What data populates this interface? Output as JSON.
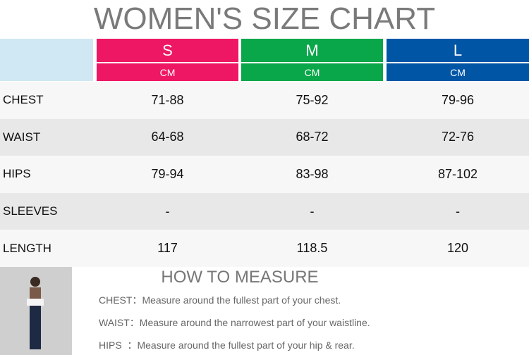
{
  "title": "WOMEN'S SIZE CHART",
  "sizes": [
    {
      "name": "S",
      "unit": "CM"
    },
    {
      "name": "M",
      "unit": "CM"
    },
    {
      "name": "L",
      "unit": "CM"
    }
  ],
  "rows": [
    {
      "label": "CHEST",
      "values": [
        "71-88",
        "75-92",
        "79-96"
      ]
    },
    {
      "label": "WAIST",
      "values": [
        "64-68",
        "68-72",
        "72-76"
      ]
    },
    {
      "label": "HIPS",
      "values": [
        "79-94",
        "83-98",
        "87-102"
      ]
    },
    {
      "label": "SLEEVES",
      "values": [
        "-",
        "-",
        "-"
      ]
    },
    {
      "label": "LENGTH",
      "values": [
        "117",
        "118.5",
        "120"
      ]
    }
  ],
  "measure": {
    "title": "HOW TO MEASURE",
    "lines": [
      "CHEST：Measure around the fullest part of your chest.",
      "WAIST：Measure around the narrowest part of your waistline.",
      "HIPS  ：Measure around the fullest part of your hip & rear."
    ]
  }
}
